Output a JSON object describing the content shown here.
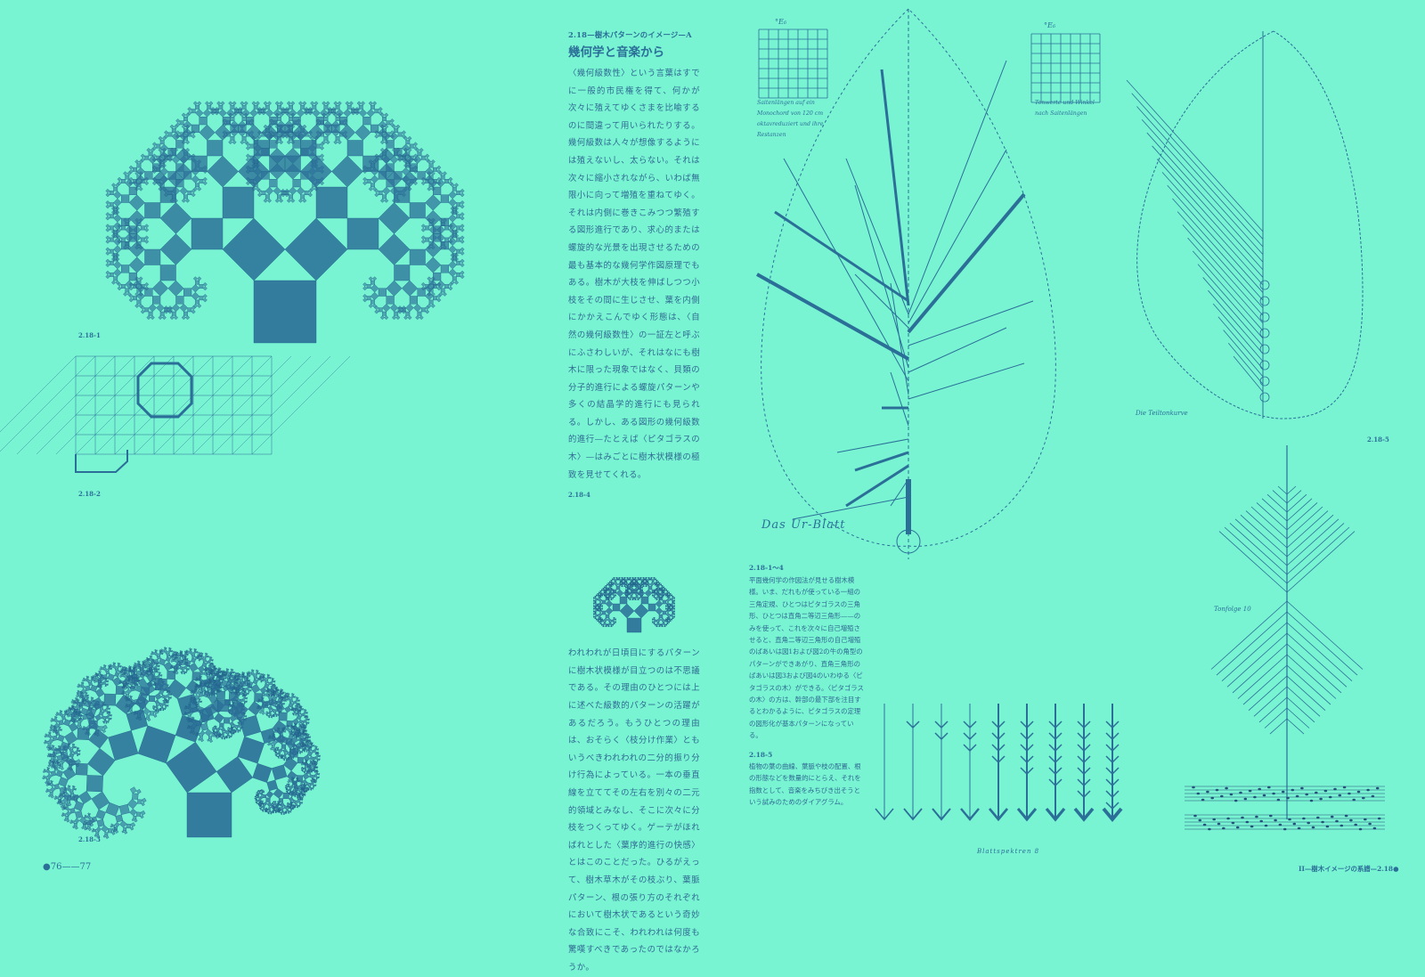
{
  "colors": {
    "background": "#79f4d3",
    "ink": "#2b6f98",
    "ink_dark": "#266b93"
  },
  "figures": {
    "fig1_label": "2.18-1",
    "fig2_label": "2.18-2",
    "fig3_label": "2.18-3",
    "fig4_label": "2.18-4",
    "fig5_label": "2.18-5"
  },
  "article": {
    "section": "2.18—樹木パターンのイメージ—A",
    "title": "幾何学と音楽から",
    "paragraph1": "〈幾何級数性〉という言葉はすでに一般的市民権を得て、何かが次々に殖えてゆくさまを比喩するのに間違って用いられたりする。幾何級数は人々が想像するようには殖えないし、太らない。それは次々に縮小されながら、いわば無限小に向って増殖を重ねてゆく。それは内側に巻きこみつつ繁殖する図形進行であり、求心的または螺旋的な光景を出現させるための最も基本的な幾何学作図原理でもある。樹木が大枝を伸ばしつつ小枝をその間に生じさせ、葉を内側にかかえこんでゆく形態は、〈自然の幾何級数性〉の一証左と呼ぶにふさわしいが、それはなにも樹木に限った現象ではなく、貝類の分子的進行による螺旋パターンや多くの結晶学的進行にも見られる。しかし、ある図形の幾何級数的進行—たとえば〈ピタゴラスの木〉—はみごとに樹木状模様の極致を見せてくれる。",
    "paragraph2": "われわれが日頃目にするパターンに樹木状模様が目立つのは不思議である。その理由のひとつには上に述べた級数的パターンの活躍があるだろう。もうひとつの理由は、おそらく〈枝分け作業〉ともいうべきわれわれの二分的振り分け行為によっている。一本の垂直線を立ててその左右を別々の二元的領域とみなし、そこに次々に分枝をつくってゆく。ゲーテがほればれとした〈葉序的進行の快感〉とはこのことだった。ひるがえって、樹木草木がその枝ぶり、葉脈パターン、根の張り方のそれぞれにおいて樹木状であるという奇妙な合致にこそ、われわれは何度も驚嘆すべきであったのではなかろうか。"
  },
  "captions": {
    "c1_label": "2.18-1〜4",
    "c1_text": "平面幾何学の作図法が見せる樹木模様。いま、だれもが使っている一組の三角定規、ひとつはピタゴラスの三角形、ひとつは直角二等辺三角形——のみを使って、これを次々に自己増殖させると、直角二等辺三角形の自己増殖のばあいは図1および図2の牛の角型のパターンができあがり、直角三角形のばあいは図3および図4のいわゆる〈ピタゴラスの木〉ができる。〈ピタゴラスの木〉の方は、幹部の最下部を注目するとわかるように、ピタゴラスの定理の図形化が基本パターンになっている。",
    "c2_label": "2.18-5",
    "c2_text": "植物の葉の曲線、葉脈や枝の配置、根の形態などを数量的にとらえ、それを指数として、音楽をみちびき出そうという試みのためのダイアグラム。"
  },
  "handwritten": {
    "table_left_title": "°E₆",
    "table_left_note": "Saitenlängen auf ein Monochord von 120 cm oktavreduziert und ihre Restanzen",
    "table_right_title": "°E₆",
    "table_right_note": "Tonwerte und Winkel nach Saitenlängen",
    "leaf_title": "Das Ur-Blatt",
    "teiltonkurve": "Die Teiltonkurve",
    "tonfolge": "Tonfolge 10",
    "blattspektren": "Blattspektren 8"
  },
  "footer": {
    "left_pages": "●76——77",
    "right_running": "II—樹木イメージの系譜—2.18●"
  }
}
